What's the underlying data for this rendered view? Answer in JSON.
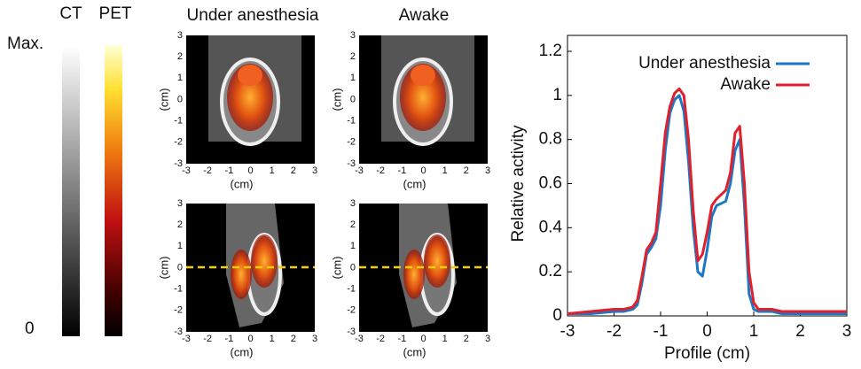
{
  "colorbars": {
    "ct_label": "CT",
    "pet_label": "PET",
    "max_label": "Max.",
    "min_label": "0"
  },
  "panels": {
    "titles": [
      "Under anesthesia",
      "Awake"
    ],
    "axis_label": "(cm)",
    "ticks": [
      -3,
      -2,
      -1,
      0,
      1,
      2,
      3
    ]
  },
  "chart_data": {
    "type": "line",
    "xlabel": "Profile (cm)",
    "ylabel": "Relative activity",
    "x": [
      -3,
      -2.5,
      -2,
      -1.8,
      -1.6,
      -1.5,
      -1.4,
      -1.3,
      -1.2,
      -1.1,
      -1.0,
      -0.9,
      -0.8,
      -0.7,
      -0.6,
      -0.5,
      -0.4,
      -0.3,
      -0.2,
      -0.1,
      0,
      0.1,
      0.2,
      0.3,
      0.4,
      0.5,
      0.6,
      0.7,
      0.8,
      0.9,
      1.0,
      1.1,
      1.2,
      1.4,
      1.6,
      2,
      2.5,
      3
    ],
    "series": [
      {
        "name": "Under anesthesia",
        "color": "#1f77c4",
        "values": [
          0.01,
          0.01,
          0.02,
          0.02,
          0.03,
          0.05,
          0.15,
          0.28,
          0.31,
          0.35,
          0.5,
          0.75,
          0.92,
          0.98,
          1.0,
          0.93,
          0.7,
          0.4,
          0.2,
          0.18,
          0.3,
          0.45,
          0.5,
          0.51,
          0.52,
          0.6,
          0.75,
          0.8,
          0.5,
          0.1,
          0.03,
          0.02,
          0.02,
          0.02,
          0.01,
          0.01,
          0.01,
          0.01
        ]
      },
      {
        "name": "Awake",
        "color": "#e0202a",
        "values": [
          0.01,
          0.02,
          0.03,
          0.03,
          0.04,
          0.07,
          0.18,
          0.3,
          0.33,
          0.38,
          0.6,
          0.83,
          0.95,
          1.01,
          1.03,
          1.0,
          0.8,
          0.48,
          0.25,
          0.28,
          0.38,
          0.5,
          0.53,
          0.55,
          0.57,
          0.65,
          0.83,
          0.86,
          0.6,
          0.2,
          0.06,
          0.03,
          0.03,
          0.03,
          0.02,
          0.02,
          0.02,
          0.02
        ]
      }
    ],
    "xlim": [
      -3,
      3
    ],
    "ylim": [
      0,
      1.2
    ],
    "xticks": [
      -3,
      -2,
      -1,
      0,
      1,
      2,
      3
    ],
    "yticks": [
      0,
      0.2,
      0.4,
      0.6,
      0.8,
      1,
      1.2
    ],
    "legend": "upper right"
  }
}
